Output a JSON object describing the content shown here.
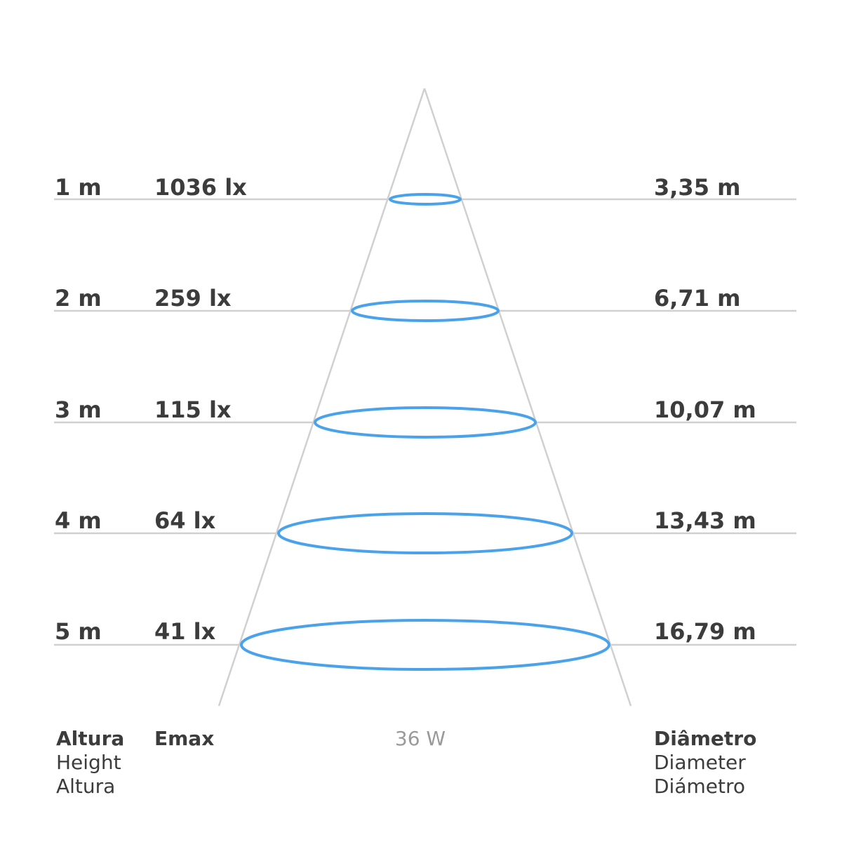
{
  "colors": {
    "gridline": "#d0d0d0",
    "cone": "#d0d0d0",
    "beam": "#4aa3ea",
    "text": "#3c3c3c",
    "muted": "#9a9a9a"
  },
  "rows": [
    {
      "height": "1 m",
      "emax": "1036 lx",
      "diameter": "3,35 m",
      "diameter_m": 3.35
    },
    {
      "height": "2 m",
      "emax": "259 lx",
      "diameter": "6,71 m",
      "diameter_m": 6.71
    },
    {
      "height": "3 m",
      "emax": "115 lx",
      "diameter": "10,07 m",
      "diameter_m": 10.07
    },
    {
      "height": "4 m",
      "emax": "64 lx",
      "diameter": "13,43 m",
      "diameter_m": 13.43
    },
    {
      "height": "5 m",
      "emax": "41 lx",
      "diameter": "16,79 m",
      "diameter_m": 16.79
    }
  ],
  "power": "36 W",
  "footer": {
    "height": {
      "title": "Altura",
      "lines": [
        "Height",
        "Altura"
      ]
    },
    "emax": {
      "title": "Emax"
    },
    "diameter": {
      "title": "Diâmetro",
      "lines": [
        "Diameter",
        "Diámetro"
      ]
    }
  }
}
